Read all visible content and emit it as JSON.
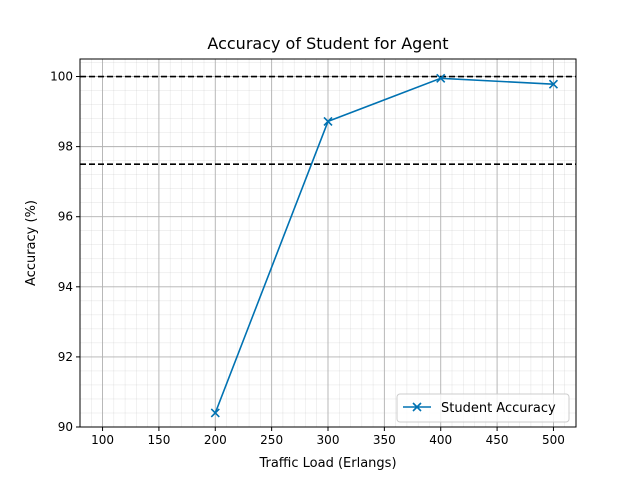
{
  "chart_data": {
    "type": "line",
    "title": "Accuracy of Student for Agent",
    "xlabel": "Traffic Load (Erlangs)",
    "ylabel": "Accuracy (%)",
    "xlim": [
      80,
      520
    ],
    "ylim": [
      90,
      100.5
    ],
    "xticks": [
      100,
      150,
      200,
      250,
      300,
      350,
      400,
      450,
      500
    ],
    "yticks": [
      90,
      92,
      94,
      96,
      98,
      100
    ],
    "grid": true,
    "minor_grid": true,
    "legend_position": "lower-right",
    "series": [
      {
        "name": "Student Accuracy",
        "color": "#0072b2",
        "marker": "x",
        "x": [
          200,
          300,
          400,
          500
        ],
        "y": [
          90.4,
          98.72,
          99.95,
          99.78
        ]
      }
    ],
    "reference_lines": [
      {
        "y": 100.0,
        "style": "dashed",
        "color": "#000000"
      },
      {
        "y": 97.5,
        "style": "dashed",
        "color": "#000000"
      }
    ]
  }
}
